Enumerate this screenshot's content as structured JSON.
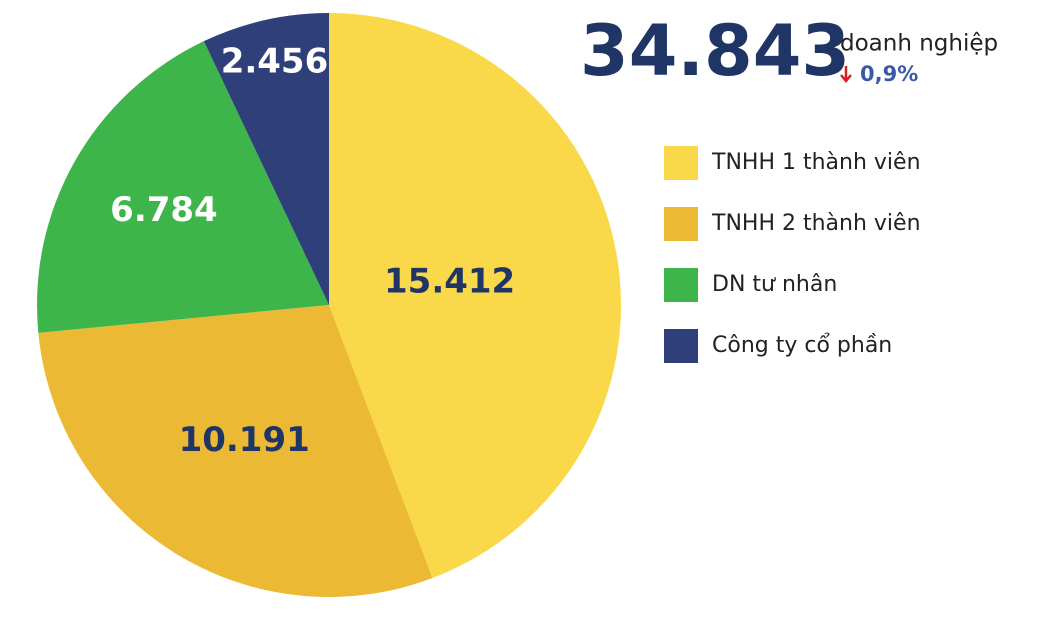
{
  "chart_data": {
    "type": "pie",
    "total_label": "34.843",
    "unit": "doanh nghiệp",
    "change": "0,9%",
    "categories": [
      "TNHH 1 thành viên",
      "TNHH 2 thành viên",
      "DN tư nhân",
      "Công ty cổ phần"
    ],
    "values": [
      15412,
      10191,
      6784,
      2456
    ],
    "value_labels": [
      "15.412",
      "10.191",
      "6.784",
      "2.456"
    ],
    "colors": [
      "#f9d949",
      "#ecb935",
      "#3db54a",
      "#2e3f7a"
    ]
  }
}
